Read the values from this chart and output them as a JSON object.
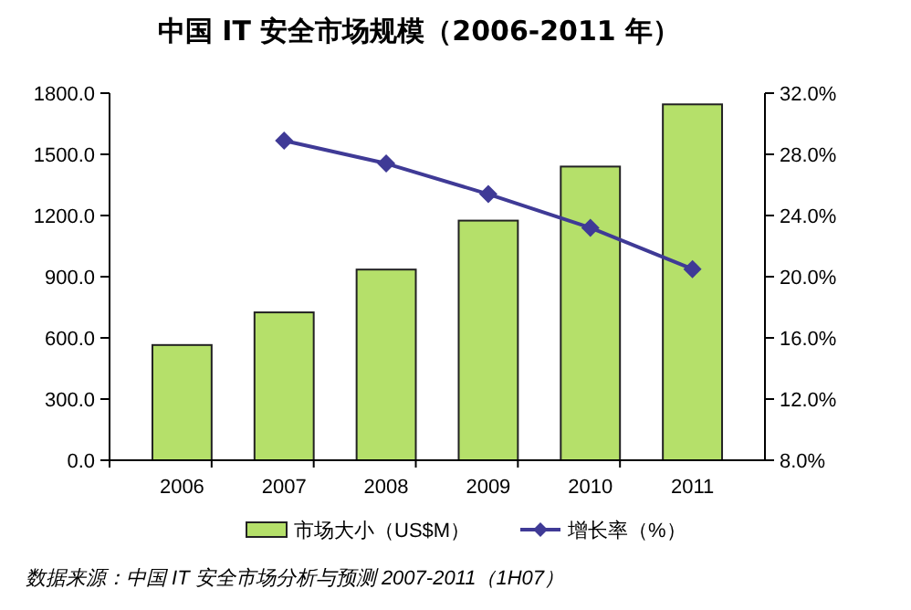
{
  "chart_data": {
    "type": "bar",
    "title": "中国 IT 安全市场规模（2006-2011 年）",
    "categories": [
      "2006",
      "2007",
      "2008",
      "2009",
      "2010",
      "2011"
    ],
    "series": [
      {
        "name": "市场大小（US$M）",
        "color": "#b5e06a",
        "values": [
          565,
          725,
          935,
          1175,
          1440,
          1745
        ]
      },
      {
        "name": "增长率（%）",
        "type": "line",
        "axis": "y2",
        "color": "#3f3a96",
        "marker": "diamond",
        "values": [
          null,
          28.9,
          27.4,
          25.4,
          23.2,
          20.5
        ]
      }
    ],
    "ylim": [
      0,
      1800
    ],
    "yticks": [
      {
        "value": 0,
        "label": "0.0"
      },
      {
        "value": 300,
        "label": "300.0"
      },
      {
        "value": 600,
        "label": "600.0"
      },
      {
        "value": 900,
        "label": "900.0"
      },
      {
        "value": 1200,
        "label": "1200.0"
      },
      {
        "value": 1500,
        "label": "1500.0"
      },
      {
        "value": 1800,
        "label": "1800.0"
      }
    ],
    "y2lim": [
      8,
      32
    ],
    "y2ticks": [
      {
        "value": 8,
        "label": "8.0%"
      },
      {
        "value": 12,
        "label": "12.0%"
      },
      {
        "value": 16,
        "label": "16.0%"
      },
      {
        "value": 20,
        "label": "20.0%"
      },
      {
        "value": 24,
        "label": "24.0%"
      },
      {
        "value": 28,
        "label": "28.0%"
      },
      {
        "value": 32,
        "label": "32.0%"
      }
    ],
    "legend": "bottom",
    "annotations": [
      "数据来源：中国 IT 安全市场分析与预测 2007-2011（1H07）"
    ]
  }
}
